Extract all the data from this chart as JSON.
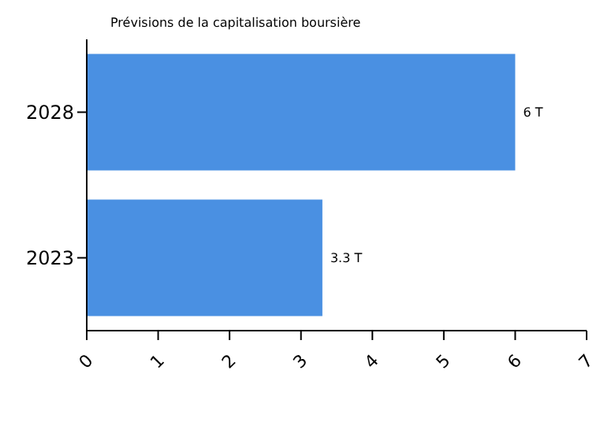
{
  "chart_data": {
    "type": "bar",
    "orientation": "horizontal",
    "title": "Prévisions de la capitalisation boursière",
    "categories": [
      "2028",
      "2023"
    ],
    "values": [
      6,
      3.3
    ],
    "value_labels": [
      "6 T",
      "3.3 T"
    ],
    "color": "#4a90e2",
    "xlim": [
      0,
      7
    ],
    "xticks": [
      0,
      1,
      2,
      3,
      4,
      5,
      6,
      7
    ],
    "grid": false
  }
}
